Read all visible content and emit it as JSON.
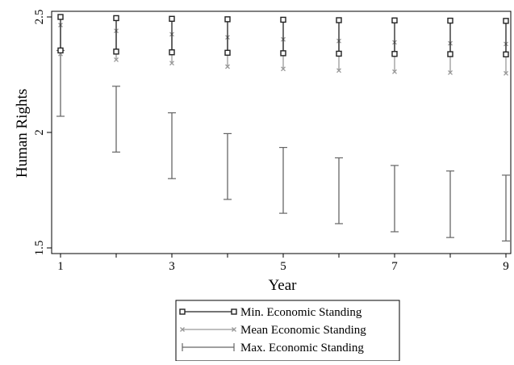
{
  "chart_data": {
    "type": "error-bar",
    "xlabel": "Year",
    "ylabel": "Human Rights",
    "xlim": [
      1,
      9
    ],
    "ylim": [
      1.5,
      2.5
    ],
    "x_ticks": [
      "1",
      "3",
      "5",
      "7",
      "9"
    ],
    "y_ticks": [
      "1.5",
      "2",
      "2.5"
    ],
    "x": [
      1,
      2,
      3,
      4,
      5,
      6,
      7,
      8,
      9
    ],
    "legend_position": "bottom",
    "grid": false,
    "series": [
      {
        "name": "Min. Economic Standing",
        "color": "#222222",
        "marker": "square",
        "lower": [
          2.355,
          2.35,
          2.347,
          2.345,
          2.343,
          2.341,
          2.34,
          2.339,
          2.338
        ],
        "upper": [
          2.5,
          2.495,
          2.492,
          2.49,
          2.488,
          2.486,
          2.485,
          2.484,
          2.483
        ]
      },
      {
        "name": "Mean Economic Standing",
        "color": "#999999",
        "marker": "x",
        "lower": [
          2.34,
          2.315,
          2.3,
          2.285,
          2.275,
          2.268,
          2.263,
          2.259,
          2.256
        ],
        "upper": [
          2.465,
          2.44,
          2.425,
          2.412,
          2.403,
          2.396,
          2.39,
          2.386,
          2.383
        ]
      },
      {
        "name": "Max. Economic Standing",
        "color": "#666666",
        "marker": "cap",
        "lower": [
          2.07,
          1.915,
          1.8,
          1.71,
          1.65,
          1.605,
          1.57,
          1.545,
          1.53
        ],
        "upper": [
          2.355,
          2.2,
          2.085,
          1.995,
          1.935,
          1.89,
          1.857,
          1.833,
          1.815
        ]
      }
    ]
  }
}
